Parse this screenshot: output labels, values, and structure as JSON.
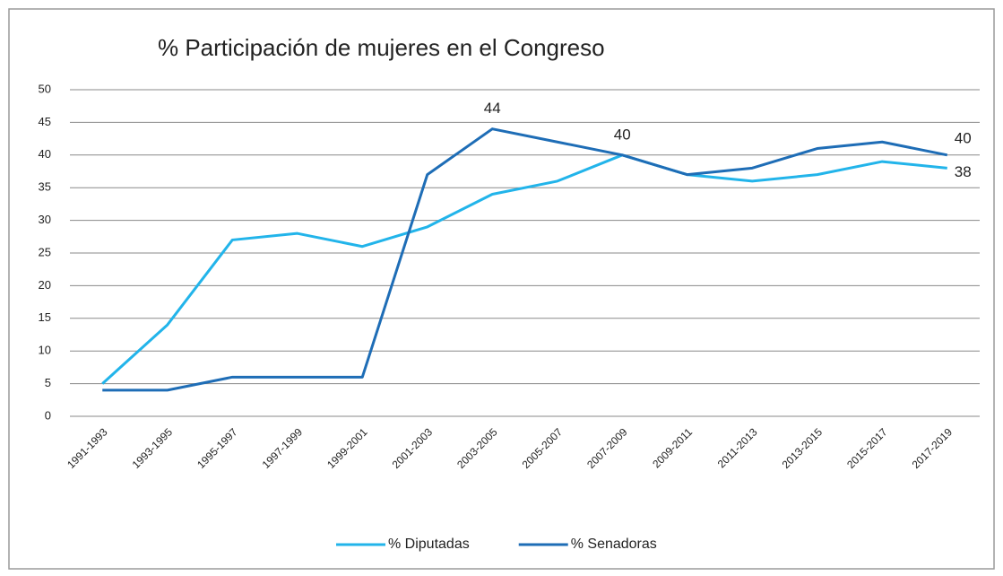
{
  "chart_data": {
    "type": "line",
    "title": "% Participación  de mujeres en el Congreso",
    "categories": [
      "1991-1993",
      "1993-1995",
      "1995-1997",
      "1997-1999",
      "1999-2001",
      "2001-2003",
      "2003-2005",
      "2005-2007",
      "2007-2009",
      "2009-2011",
      "2011-2013",
      "2013-2015",
      "2015-2017",
      "2017-2019"
    ],
    "series": [
      {
        "name": "% Diputadas",
        "color": "#22b4ea",
        "values": [
          5,
          14,
          27,
          28,
          26,
          29,
          34,
          36,
          40,
          37,
          36,
          37,
          39,
          38
        ],
        "value_labels": [
          null,
          null,
          null,
          null,
          null,
          null,
          null,
          null,
          null,
          null,
          null,
          null,
          null,
          "38"
        ]
      },
      {
        "name": "% Senadoras",
        "color": "#1e6db6",
        "values": [
          4,
          4,
          6,
          6,
          6,
          37,
          44,
          42,
          40,
          37,
          38,
          41,
          42,
          40
        ],
        "value_labels": [
          null,
          null,
          null,
          null,
          null,
          null,
          "44",
          null,
          "40",
          null,
          null,
          null,
          null,
          "40"
        ]
      }
    ],
    "ylim": [
      0,
      50
    ],
    "yticks": [
      0,
      5,
      10,
      15,
      20,
      25,
      30,
      35,
      40,
      45,
      50
    ],
    "grid": true,
    "legend": "bottom"
  }
}
